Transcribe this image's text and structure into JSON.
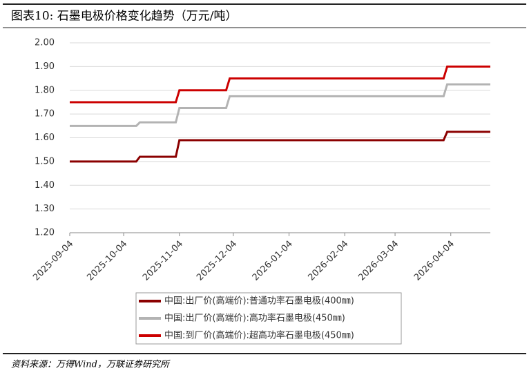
{
  "chart_data": {
    "type": "line",
    "title": "图表10:  石墨电极价格变化趋势（万元/吨）",
    "source": "资料来源：万得Wind，万联证券研究所",
    "x": [
      "2025-09-04",
      "2025-10-11",
      "2025-10-13",
      "2025-11-02",
      "2025-11-04",
      "2025-11-30",
      "2025-12-02",
      "2026-03-31",
      "2026-04-02",
      "2026-04-26"
    ],
    "xlim": [
      "2025-09-04",
      "2026-04-26"
    ],
    "xticks": [
      "2025-09-04",
      "2025-10-04",
      "2025-11-04",
      "2025-12-04",
      "2026-01-04",
      "2026-02-04",
      "2026-03-04",
      "2026-04-04"
    ],
    "ylim": [
      1.2,
      2.0
    ],
    "yticks": [
      {
        "value": 1.2,
        "label": "1.20"
      },
      {
        "value": 1.3,
        "label": "1.30"
      },
      {
        "value": 1.4,
        "label": "1.40"
      },
      {
        "value": 1.5,
        "label": "1.50"
      },
      {
        "value": 1.6,
        "label": "1.60"
      },
      {
        "value": 1.7,
        "label": "1.70"
      },
      {
        "value": 1.8,
        "label": "1.80"
      },
      {
        "value": 1.9,
        "label": "1.90"
      },
      {
        "value": 2.0,
        "label": "2.00"
      }
    ],
    "grid": true,
    "series": [
      {
        "name": "中国:出厂价(高端价):普通功率石墨电极(400㎜)",
        "color": "#8b0000",
        "values": [
          1.5,
          1.5,
          1.52,
          1.52,
          1.59,
          1.59,
          1.59,
          1.59,
          1.625,
          1.625
        ]
      },
      {
        "name": "中国:出厂价(高端价):高功率石墨电极(450㎜)",
        "color": "#b3b3b3",
        "values": [
          1.65,
          1.65,
          1.665,
          1.665,
          1.725,
          1.725,
          1.775,
          1.775,
          1.825,
          1.825
        ]
      },
      {
        "name": "中国:到厂价(高端价):超高功率石墨电极(450㎜)",
        "color": "#cc0000",
        "values": [
          1.75,
          1.75,
          1.75,
          1.75,
          1.8,
          1.8,
          1.85,
          1.85,
          1.9,
          1.9
        ]
      }
    ]
  }
}
